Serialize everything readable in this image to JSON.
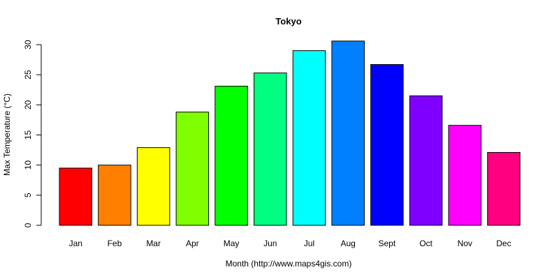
{
  "chart_data": {
    "type": "bar",
    "title": "Tokyo",
    "xlabel": "Month (http://www.maps4gis.com)",
    "ylabel": "Max Temperature (°C)",
    "categories": [
      "Jan",
      "Feb",
      "Mar",
      "Apr",
      "May",
      "Jun",
      "Jul",
      "Aug",
      "Sept",
      "Oct",
      "Nov",
      "Dec"
    ],
    "values": [
      9.5,
      10.0,
      12.9,
      18.8,
      23.1,
      25.3,
      29.0,
      30.6,
      26.7,
      21.5,
      16.6,
      12.1
    ],
    "colors": [
      "#FF0000",
      "#FF8000",
      "#FFFF00",
      "#80FF00",
      "#00FF00",
      "#00FF80",
      "#00FFFF",
      "#0080FF",
      "#0000FF",
      "#8000FF",
      "#FF00FF",
      "#FF0080"
    ],
    "ylim": [
      0,
      30
    ],
    "yticks": [
      0,
      5,
      10,
      15,
      20,
      25,
      30
    ],
    "grid": false,
    "legend": "none"
  }
}
